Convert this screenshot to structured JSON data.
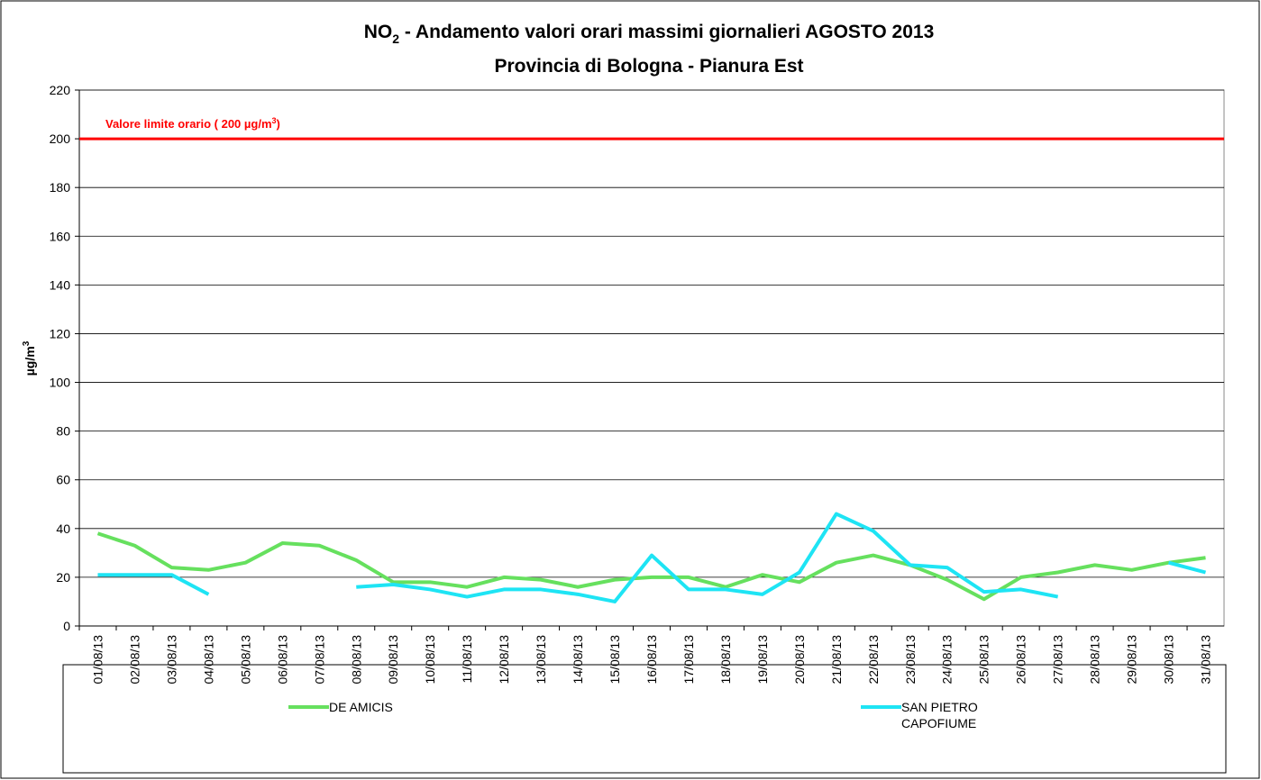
{
  "chart_data": {
    "type": "line",
    "title": [
      "NO",
      "2",
      " - Andamento valori orari massimi giornalieri AGOSTO 2013"
    ],
    "subtitle": "Provincia di Bologna - Pianura Est",
    "y_label": [
      "µg/m",
      "3"
    ],
    "categories": [
      "01/08/13",
      "02/08/13",
      "03/08/13",
      "04/08/13",
      "05/08/13",
      "06/08/13",
      "07/08/13",
      "08/08/13",
      "09/08/13",
      "10/08/13",
      "11/08/13",
      "12/08/13",
      "13/08/13",
      "14/08/13",
      "15/08/13",
      "16/08/13",
      "17/08/13",
      "18/08/13",
      "19/08/13",
      "20/08/13",
      "21/08/13",
      "22/08/13",
      "23/08/13",
      "24/08/13",
      "25/08/13",
      "26/08/13",
      "27/08/13",
      "28/08/13",
      "29/08/13",
      "30/08/13",
      "31/08/13"
    ],
    "series": [
      {
        "name": "DE AMICIS",
        "color": "#66e05e",
        "values": [
          38,
          33,
          24,
          23,
          26,
          34,
          33,
          27,
          18,
          18,
          16,
          20,
          19,
          16,
          19,
          20,
          20,
          16,
          21,
          18,
          26,
          29,
          25,
          19,
          11,
          20,
          22,
          25,
          23,
          26,
          28
        ]
      },
      {
        "name": "SAN PIETRO CAPOFIUME",
        "color": "#1ee4f4",
        "values": [
          21,
          21,
          21,
          13,
          null,
          null,
          null,
          16,
          17,
          15,
          12,
          15,
          15,
          13,
          10,
          29,
          15,
          15,
          13,
          22,
          46,
          39,
          25,
          24,
          14,
          15,
          12,
          null,
          null,
          26,
          22
        ]
      }
    ],
    "reference_line": {
      "value": 200,
      "color": "#ff0000",
      "label": [
        "Valore limite orario ( 200 µg/m",
        "3",
        ")"
      ]
    },
    "ylim": [
      0,
      220
    ],
    "yticks": [
      0,
      20,
      40,
      60,
      80,
      100,
      120,
      140,
      160,
      180,
      200,
      220
    ],
    "grid": true
  }
}
